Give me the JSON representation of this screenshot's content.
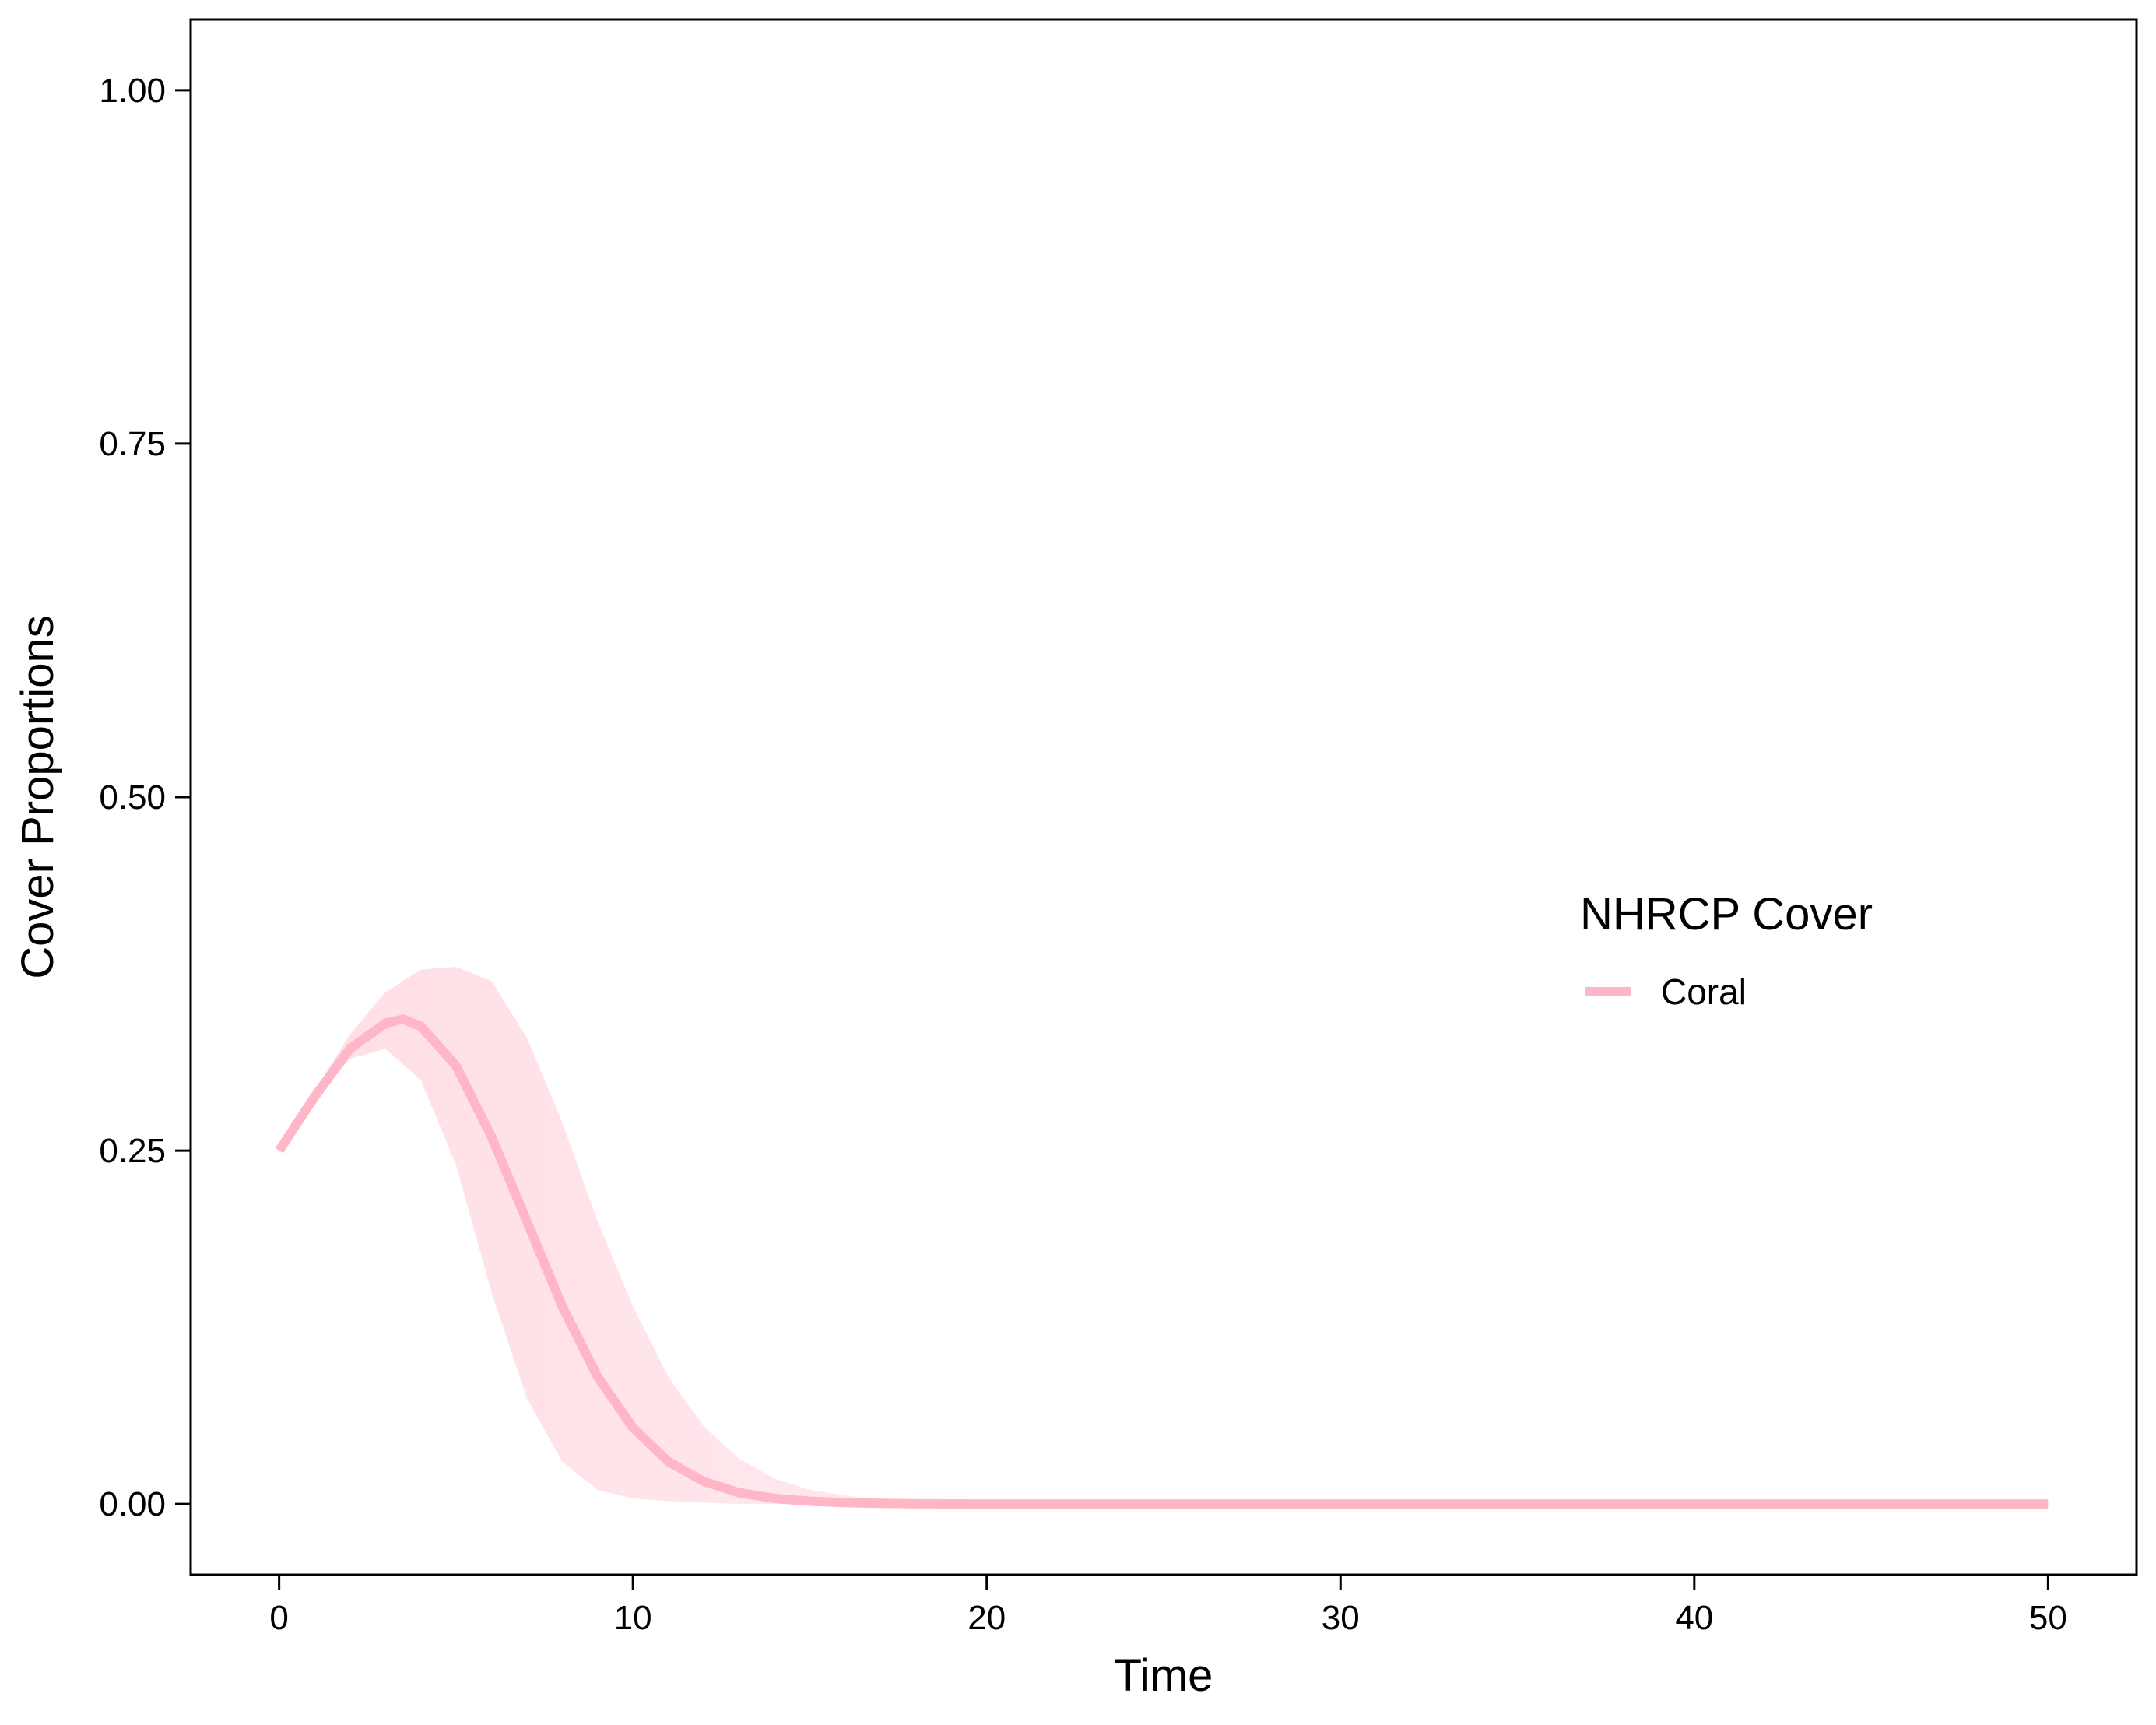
{
  "chart_data": {
    "type": "line",
    "title": "",
    "xlabel": "Time",
    "ylabel": "Cover Proportions",
    "xlim": [
      -2.5,
      52.5
    ],
    "ylim": [
      -0.05,
      1.05
    ],
    "x_ticks": [
      0,
      10,
      20,
      30,
      40,
      50
    ],
    "y_ticks": [
      0.0,
      0.25,
      0.5,
      0.75,
      1.0
    ],
    "x_tick_labels": [
      "0",
      "10",
      "20",
      "30",
      "40",
      "50"
    ],
    "y_tick_labels": [
      "0.00",
      "0.25",
      "0.50",
      "0.75",
      "1.00"
    ],
    "grid": false,
    "legend": {
      "title": "NHRCP Cover",
      "placement": "right",
      "entries": [
        {
          "label": "Coral",
          "color": "#ffb6c6"
        }
      ]
    },
    "series": [
      {
        "name": "Coral",
        "color": "#ffb6c6",
        "x": [
          0,
          1,
          2,
          3,
          3.5,
          4,
          5,
          6,
          7,
          8,
          9,
          10,
          11,
          12,
          13,
          14,
          15,
          16,
          17,
          18,
          19,
          20,
          25,
          30,
          35,
          40,
          45,
          50
        ],
        "y": [
          0.25,
          0.288,
          0.322,
          0.34,
          0.343,
          0.338,
          0.31,
          0.26,
          0.2,
          0.14,
          0.09,
          0.054,
          0.03,
          0.016,
          0.008,
          0.004,
          0.002,
          0.001,
          0.0005,
          0.0002,
          0.0001,
          0.0,
          0.0,
          0.0,
          0.0,
          0.0,
          0.0,
          0.0
        ]
      }
    ],
    "uncertainty_band": {
      "color": "#ffb6c6",
      "x": [
        0,
        1,
        2,
        3,
        4,
        5,
        6,
        7,
        8,
        9,
        10,
        11,
        12,
        13,
        14,
        15,
        16,
        17,
        18,
        20,
        25,
        50
      ],
      "lower": [
        0.25,
        0.286,
        0.315,
        0.322,
        0.3,
        0.24,
        0.15,
        0.075,
        0.03,
        0.01,
        0.004,
        0.002,
        0.001,
        0.0,
        0.0,
        0.0,
        0.0,
        0.0,
        0.0,
        0.0,
        0.0,
        0.0
      ],
      "upper": [
        0.25,
        0.292,
        0.332,
        0.362,
        0.378,
        0.38,
        0.37,
        0.33,
        0.27,
        0.2,
        0.14,
        0.09,
        0.055,
        0.032,
        0.018,
        0.01,
        0.006,
        0.003,
        0.0015,
        0.0005,
        0.0,
        0.0
      ]
    }
  }
}
